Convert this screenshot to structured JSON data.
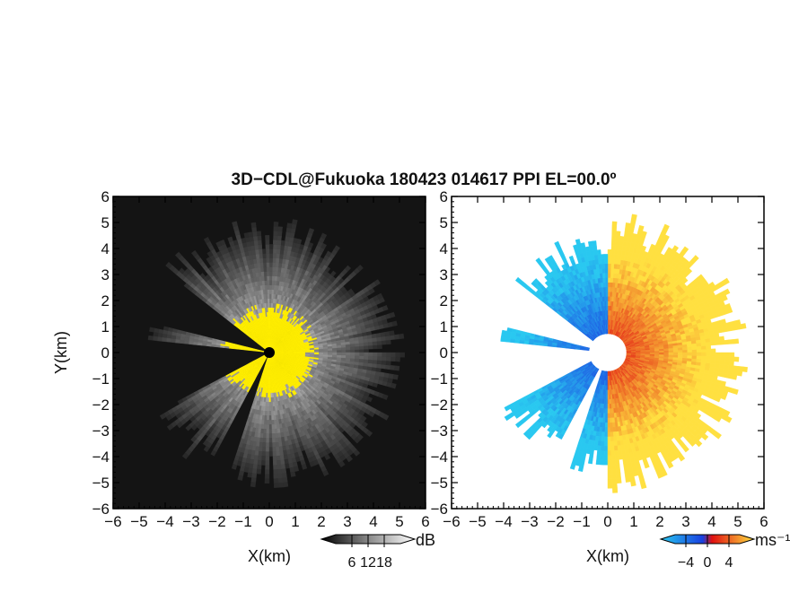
{
  "title": "3D−CDL@Fukuoka 180423 014617 PPI EL=00.0º",
  "chart_data": [
    {
      "type": "heatmap",
      "field": "backscatter",
      "xlabel": "X(km)",
      "ylabel": "Y(km)",
      "xlim": [
        -6,
        6
      ],
      "ylim": [
        -6,
        6
      ],
      "x_ticks": [
        "−6",
        "−5",
        "−4",
        "−3",
        "−2",
        "−1",
        "0",
        "1",
        "2",
        "3",
        "4",
        "5",
        "6"
      ],
      "y_ticks": [
        "−6",
        "−5",
        "−4",
        "−3",
        "−2",
        "−1",
        "0",
        "1",
        "2",
        "3",
        "4",
        "5",
        "6"
      ],
      "max_range_km": 5.2,
      "blocked_sectors_deg": [
        [
          142,
          165
        ],
        [
          175,
          208
        ],
        [
          243,
          251
        ]
      ],
      "colorbar": {
        "unit": "dB",
        "tick_labels": [
          "6",
          "12",
          "18"
        ],
        "ticks": [
          6,
          12,
          18
        ],
        "range": [
          0,
          24
        ]
      },
      "colors": {
        "background": "#111111",
        "low": "#2a2a2a",
        "high": "#f0f0f0",
        "saturated": "#ffee00"
      }
    },
    {
      "type": "heatmap",
      "field": "radial_velocity",
      "xlabel": "X(km)",
      "xlim": [
        -6,
        6
      ],
      "ylim": [
        -6,
        6
      ],
      "x_ticks": [
        "−6",
        "−5",
        "−4",
        "−3",
        "−2",
        "−1",
        "0",
        "1",
        "2",
        "3",
        "4",
        "5",
        "6"
      ],
      "y_ticks": [
        "−6",
        "−5",
        "−4",
        "−3",
        "−2",
        "−1",
        "0",
        "1",
        "2",
        "3",
        "4",
        "5",
        "6"
      ],
      "max_range_km": 5.4,
      "blocked_sectors_deg": [
        [
          142,
          165
        ],
        [
          175,
          208
        ],
        [
          243,
          251
        ]
      ],
      "colorbar": {
        "unit": "ms⁻¹",
        "tick_labels": [
          "−4",
          "0",
          "4"
        ],
        "ticks": [
          -4,
          0,
          4
        ],
        "range": [
          -6,
          6
        ]
      },
      "colors": {
        "negative_far": "#29c8f0",
        "negative_near": "#1840e0",
        "positive_near": "#e01010",
        "positive_far": "#ffe040",
        "zero": "#ffffff"
      }
    }
  ]
}
